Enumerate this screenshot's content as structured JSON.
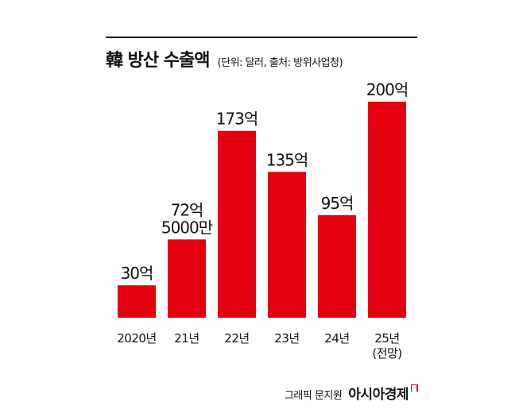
{
  "title": "韓 방산 수출액",
  "subtitle": "(단위: 달러, 출처: 방위사업청)",
  "credit": {
    "label": "그래픽 문지원",
    "brand": "아시아경제"
  },
  "colors": {
    "bar": "#e3000f",
    "text": "#111111"
  },
  "chart_data": {
    "type": "bar",
    "title": "韓 방산 수출액",
    "subtitle": "(단위: 달러, 출처: 방위사업청)",
    "categories": [
      [
        "2020년"
      ],
      [
        "21년"
      ],
      [
        "22년"
      ],
      [
        "23년"
      ],
      [
        "24년"
      ],
      [
        "25년",
        "(전망)"
      ]
    ],
    "values": [
      30,
      72.5,
      173,
      135,
      95,
      200
    ],
    "unit": "억 달러",
    "data_labels": [
      [
        "30억"
      ],
      [
        "72억",
        "5000만"
      ],
      [
        "173억"
      ],
      [
        "135억"
      ],
      [
        "95억"
      ],
      [
        "200억"
      ]
    ],
    "ylim": [
      0,
      200
    ],
    "grid": false,
    "legend": "none"
  }
}
